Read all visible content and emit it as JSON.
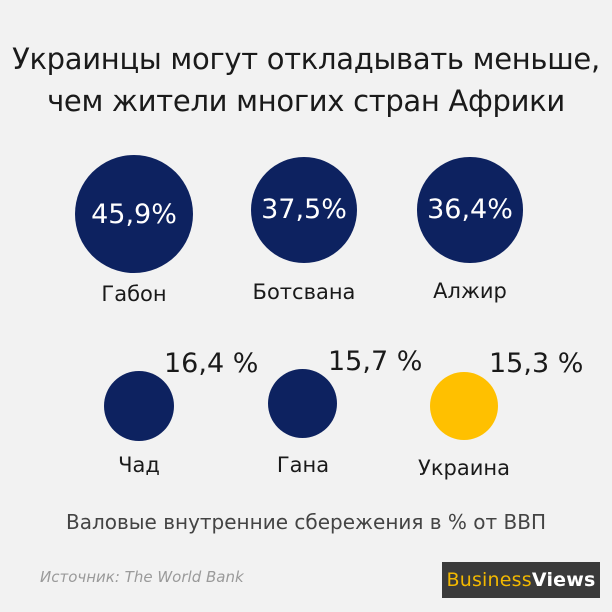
{
  "title_line1": "Украинцы могут откладывать меньше,",
  "title_line2": "чем жители многих стран Африки",
  "chart_data": {
    "type": "bubble",
    "items": [
      {
        "country": "Габон",
        "value": 45.9,
        "label": "45,9%",
        "color": "#0d2260"
      },
      {
        "country": "Ботсвана",
        "value": 37.5,
        "label": "37,5%",
        "color": "#0d2260"
      },
      {
        "country": "Алжир",
        "value": 36.4,
        "label": "36,4%",
        "color": "#0d2260"
      },
      {
        "country": "Чад",
        "value": 16.4,
        "label": "16,4 %",
        "color": "#0d2260"
      },
      {
        "country": "Гана",
        "value": 15.7,
        "label": "15,7 %",
        "color": "#0d2260"
      },
      {
        "country": "Украина",
        "value": 15.3,
        "label": "15,3 %",
        "color": "#ffc000"
      }
    ]
  },
  "footnote": "Валовые внутренние сбережения в % от ВВП",
  "source": "Источник: The World Bank",
  "logo": {
    "part1": "Business",
    "part2": "Views"
  }
}
